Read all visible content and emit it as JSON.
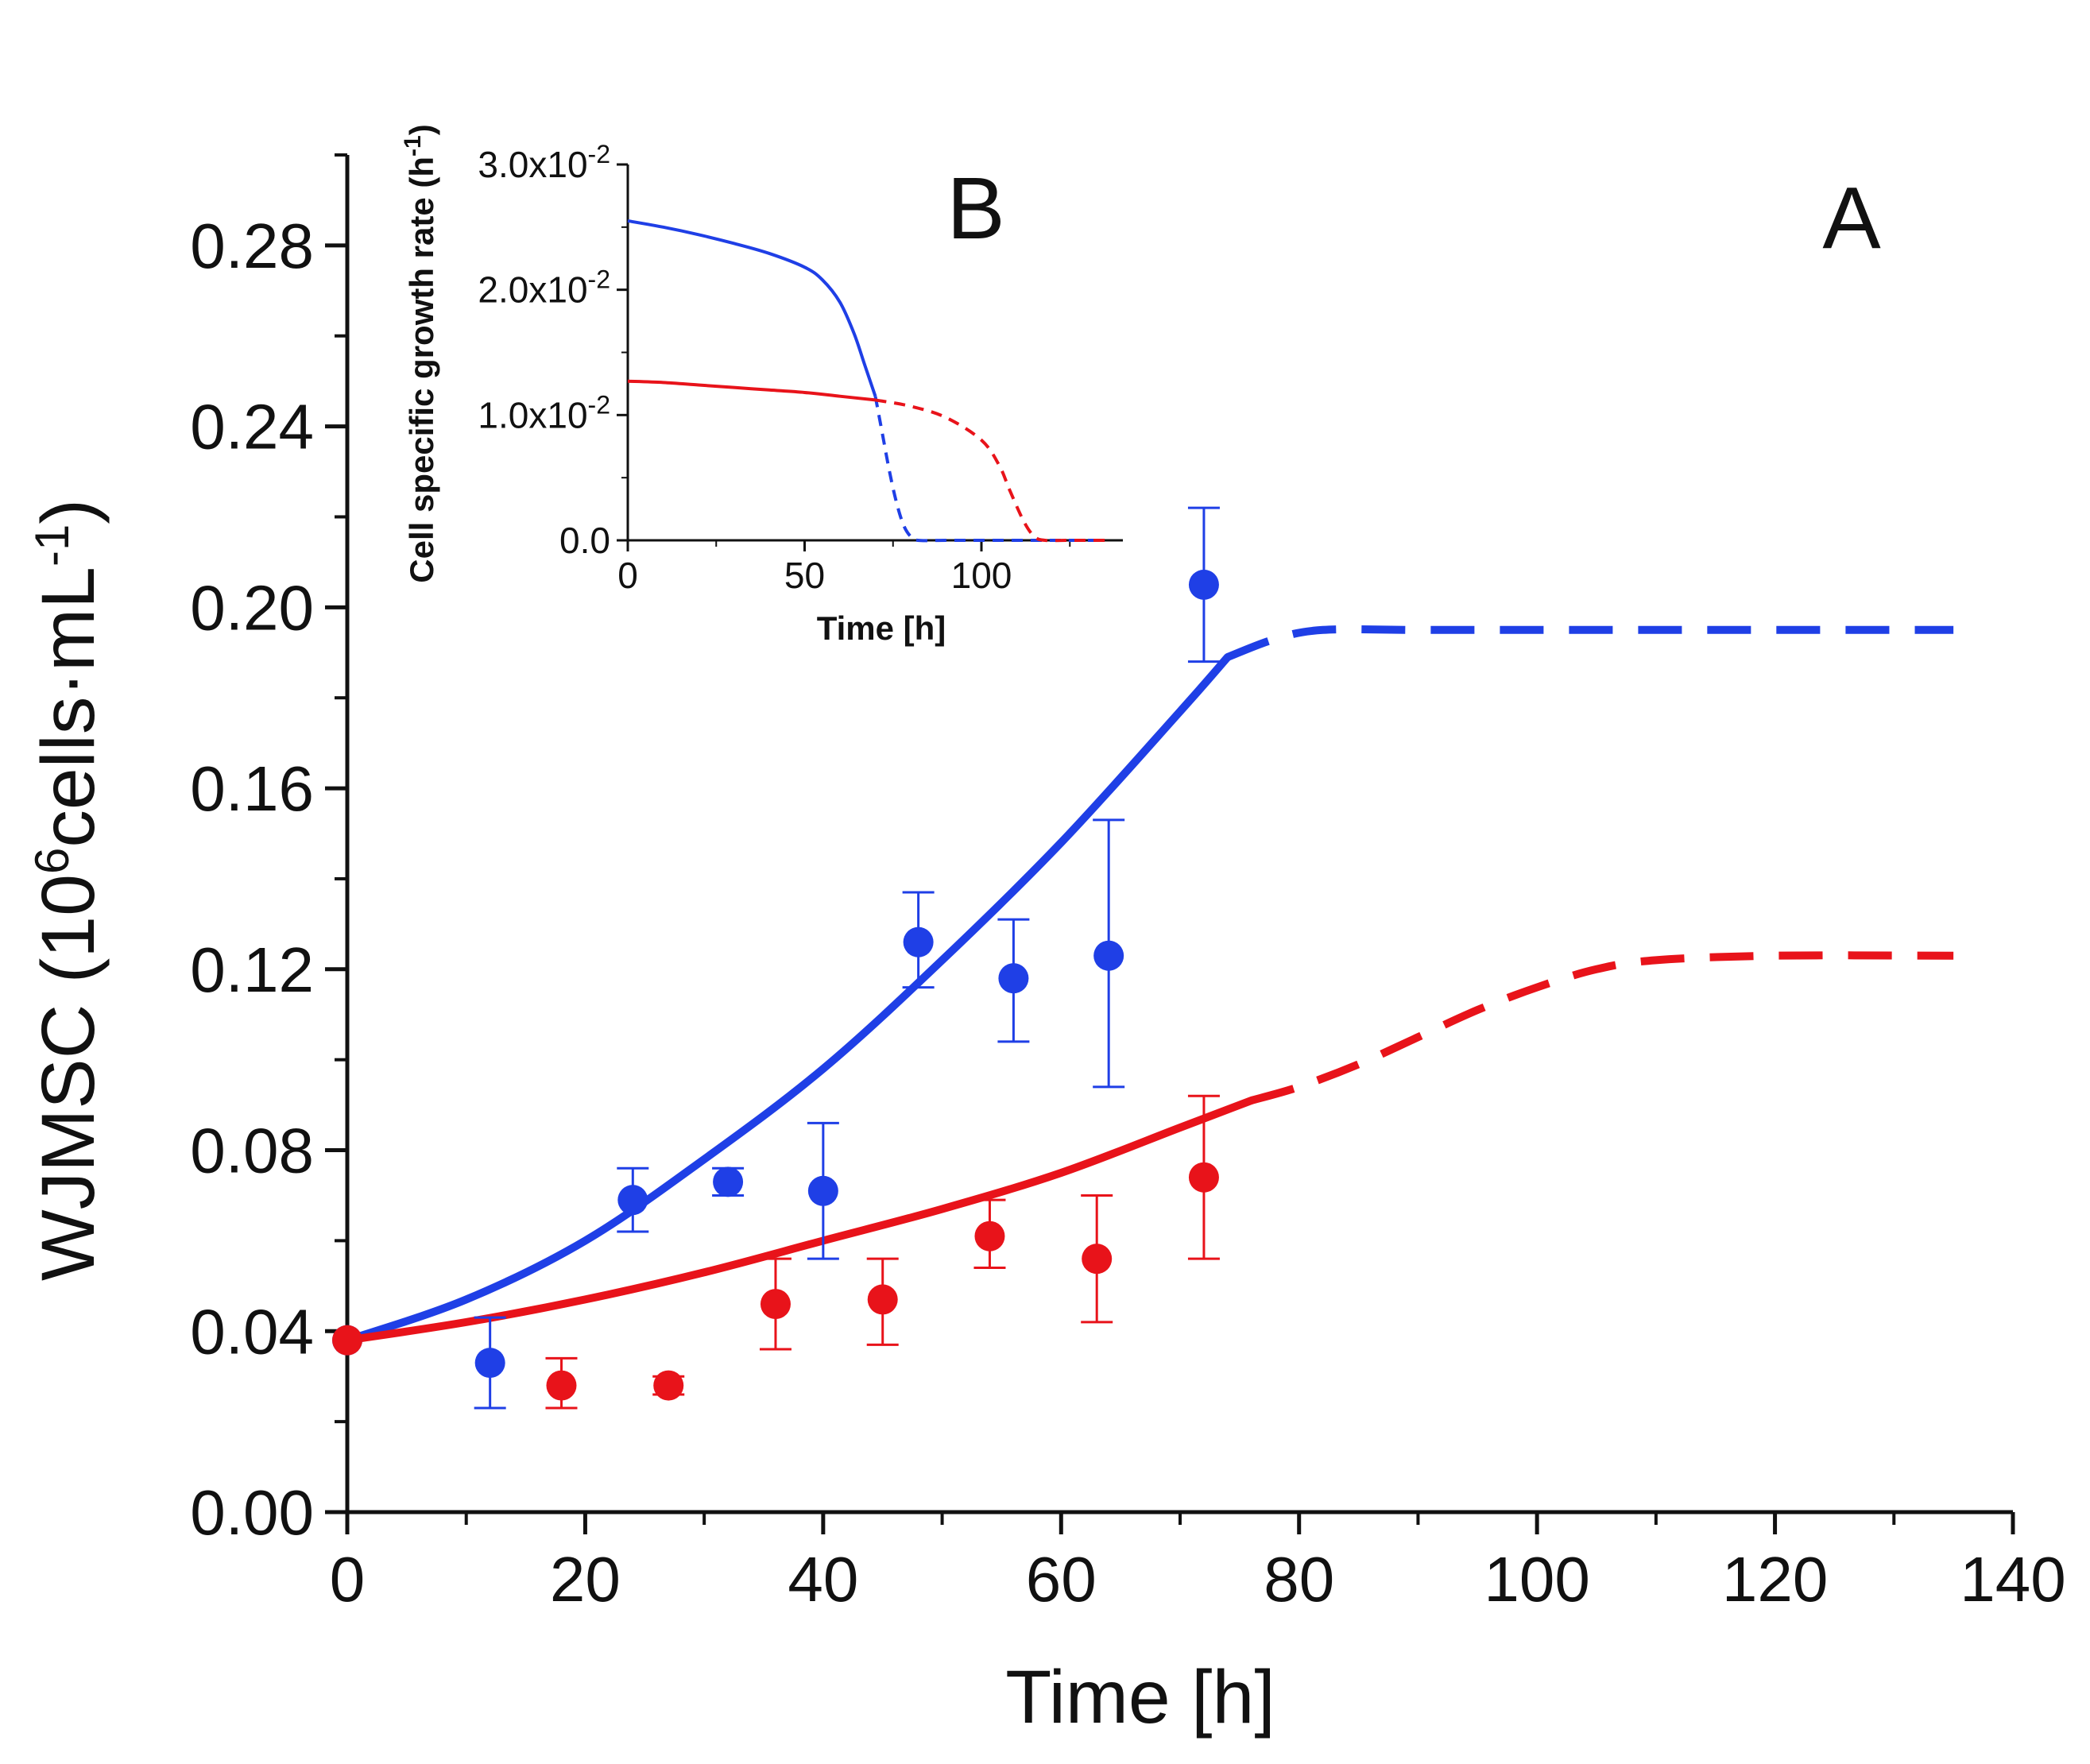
{
  "chart_data": [
    {
      "id": "main",
      "type": "scatter",
      "panel_label": "A",
      "xlabel": "Time [h]",
      "ylabel": {
        "prefix": "WJMSC (10",
        "sup1": "6",
        "mid": "cells·mL",
        "sup2": "-1",
        "suffix": ")"
      },
      "xlim": [
        0,
        140
      ],
      "ylim": [
        0,
        0.3
      ],
      "x_ticks": [
        0,
        20,
        40,
        60,
        80,
        100,
        120,
        140
      ],
      "x_tick_labels": [
        "0",
        "20",
        "40",
        "60",
        "80",
        "100",
        "120",
        "140"
      ],
      "y_ticks": [
        0,
        0.04,
        0.08,
        0.12,
        0.16,
        0.2,
        0.24,
        0.28
      ],
      "y_tick_labels": [
        "0.00",
        "0.04",
        "0.08",
        "0.12",
        "0.16",
        "0.20",
        "0.24",
        "0.28"
      ],
      "series": [
        {
          "name": "blue",
          "color": "#1f3fe6",
          "points": [
            {
              "x": 0,
              "y": 0.038,
              "lo": 0.038,
              "hi": 0.038
            },
            {
              "x": 12,
              "y": 0.033,
              "lo": 0.023,
              "hi": 0.043
            },
            {
              "x": 24,
              "y": 0.069,
              "lo": 0.062,
              "hi": 0.076
            },
            {
              "x": 32,
              "y": 0.073,
              "lo": 0.07,
              "hi": 0.076
            },
            {
              "x": 40,
              "y": 0.071,
              "lo": 0.056,
              "hi": 0.086
            },
            {
              "x": 48,
              "y": 0.126,
              "lo": 0.116,
              "hi": 0.137
            },
            {
              "x": 56,
              "y": 0.118,
              "lo": 0.104,
              "hi": 0.131
            },
            {
              "x": 64,
              "y": 0.123,
              "lo": 0.094,
              "hi": 0.153
            },
            {
              "x": 72,
              "y": 0.205,
              "lo": 0.188,
              "hi": 0.222
            }
          ],
          "fit_solid": [
            [
              0,
              0.038
            ],
            [
              10,
              0.047
            ],
            [
              20,
              0.06
            ],
            [
              30,
              0.078
            ],
            [
              40,
              0.098
            ],
            [
              50,
              0.122
            ],
            [
              60,
              0.148
            ],
            [
              70,
              0.177
            ],
            [
              74,
              0.189
            ]
          ],
          "fit_dashed": [
            [
              74,
              0.189
            ],
            [
              78,
              0.193
            ],
            [
              82,
              0.195
            ],
            [
              90,
              0.195
            ],
            [
              100,
              0.195
            ],
            [
              110,
              0.195
            ],
            [
              120,
              0.195
            ],
            [
              135,
              0.195
            ]
          ]
        },
        {
          "name": "red",
          "color": "#e8131a",
          "points": [
            {
              "x": 0,
              "y": 0.038,
              "lo": 0.038,
              "hi": 0.038
            },
            {
              "x": 18,
              "y": 0.028,
              "lo": 0.023,
              "hi": 0.034
            },
            {
              "x": 27,
              "y": 0.028,
              "lo": 0.026,
              "hi": 0.03
            },
            {
              "x": 36,
              "y": 0.046,
              "lo": 0.036,
              "hi": 0.056
            },
            {
              "x": 45,
              "y": 0.047,
              "lo": 0.037,
              "hi": 0.056
            },
            {
              "x": 54,
              "y": 0.061,
              "lo": 0.054,
              "hi": 0.069
            },
            {
              "x": 63,
              "y": 0.056,
              "lo": 0.042,
              "hi": 0.07
            },
            {
              "x": 72,
              "y": 0.074,
              "lo": 0.056,
              "hi": 0.092
            }
          ],
          "fit_solid": [
            [
              0,
              0.038
            ],
            [
              10,
              0.042
            ],
            [
              20,
              0.047
            ],
            [
              30,
              0.053
            ],
            [
              40,
              0.06
            ],
            [
              50,
              0.067
            ],
            [
              60,
              0.075
            ],
            [
              70,
              0.085
            ],
            [
              76,
              0.091
            ]
          ],
          "fit_dashed": [
            [
              76,
              0.091
            ],
            [
              80,
              0.094
            ],
            [
              85,
              0.099
            ],
            [
              90,
              0.105
            ],
            [
              95,
              0.111
            ],
            [
              100,
              0.116
            ],
            [
              105,
              0.12
            ],
            [
              110,
              0.122
            ],
            [
              120,
              0.123
            ],
            [
              135,
              0.123
            ]
          ]
        }
      ]
    },
    {
      "id": "inset",
      "type": "line",
      "panel_label": "B",
      "xlabel": "Time [h]",
      "ylabel": {
        "text": "Cell specific growth rate (h",
        "sup": "-1",
        "suffix": ")"
      },
      "xlim": [
        0,
        140
      ],
      "ylim": [
        0,
        0.03
      ],
      "x_ticks": [
        0,
        50,
        100
      ],
      "x_tick_labels": [
        "0",
        "50",
        "100"
      ],
      "y_ticks": [
        0,
        0.01,
        0.02,
        0.03
      ],
      "y_tick_labels": [
        {
          "base": "0.0",
          "sup": ""
        },
        {
          "base": "1.0x10",
          "sup": "-2"
        },
        {
          "base": "2.0x10",
          "sup": "-2"
        },
        {
          "base": "3.0x10",
          "sup": "-2"
        }
      ],
      "series": [
        {
          "name": "blue",
          "color": "#1f3fe6",
          "solid": [
            [
              0,
              0.0255
            ],
            [
              10,
              0.025
            ],
            [
              20,
              0.0244
            ],
            [
              30,
              0.0237
            ],
            [
              40,
              0.0229
            ],
            [
              50,
              0.0218
            ],
            [
              55,
              0.0208
            ],
            [
              60,
              0.019
            ],
            [
              64,
              0.0165
            ],
            [
              67,
              0.014
            ],
            [
              70,
              0.0115
            ]
          ],
          "dashed": [
            [
              70,
              0.0115
            ],
            [
              72,
              0.0085
            ],
            [
              74,
              0.0055
            ],
            [
              76,
              0.003
            ],
            [
              78,
              0.0012
            ],
            [
              80,
              0.0003
            ],
            [
              82,
              0.0
            ],
            [
              90,
              0.0
            ],
            [
              100,
              0.0
            ],
            [
              110,
              0.0
            ],
            [
              120,
              0.0
            ],
            [
              135,
              0.0
            ]
          ]
        },
        {
          "name": "red",
          "color": "#e8131a",
          "solid": [
            [
              0,
              0.0127
            ],
            [
              10,
              0.0126
            ],
            [
              20,
              0.0124
            ],
            [
              30,
              0.0122
            ],
            [
              40,
              0.012
            ],
            [
              50,
              0.0118
            ],
            [
              60,
              0.0115
            ],
            [
              70,
              0.0112
            ]
          ],
          "dashed": [
            [
              70,
              0.0112
            ],
            [
              80,
              0.0107
            ],
            [
              90,
              0.0098
            ],
            [
              100,
              0.008
            ],
            [
              105,
              0.006
            ],
            [
              108,
              0.004
            ],
            [
              112,
              0.0015
            ],
            [
              115,
              0.0003
            ],
            [
              118,
              0.0
            ],
            [
              125,
              0.0
            ],
            [
              135,
              0.0
            ]
          ]
        }
      ]
    }
  ]
}
